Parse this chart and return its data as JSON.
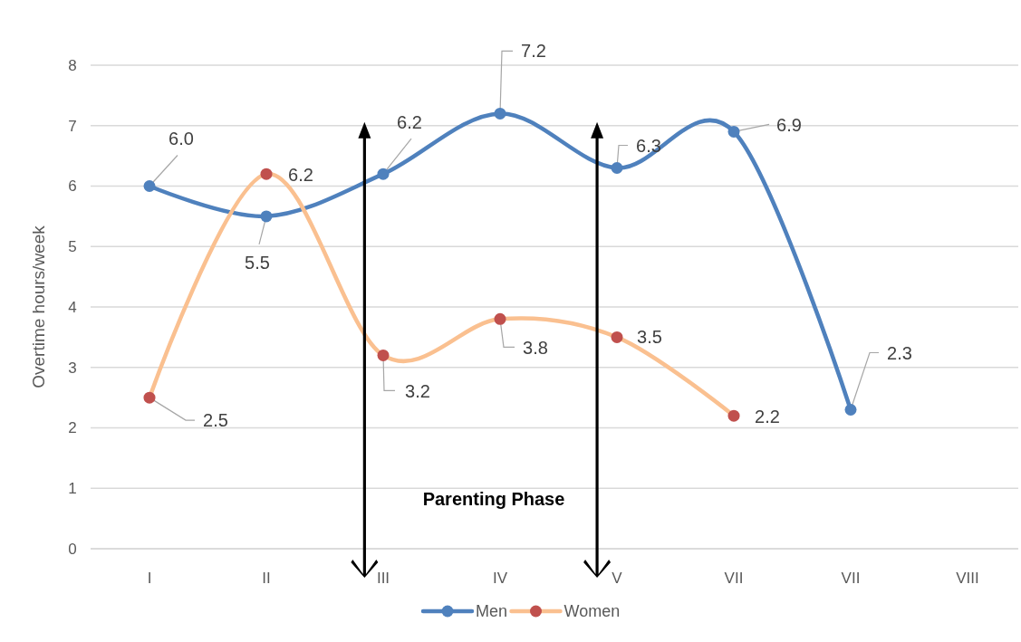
{
  "chart_data": {
    "type": "line",
    "ylabel": "Overtime hours/week",
    "categories": [
      "I",
      "II",
      "III",
      "IV",
      "V",
      "VII",
      "VII",
      "VIII"
    ],
    "series": [
      {
        "name": "Men",
        "color": "#4f81bd",
        "values": [
          6.0,
          5.5,
          6.2,
          7.2,
          6.3,
          6.9,
          2.3,
          null
        ],
        "value_labels": [
          "6.0",
          "5.5",
          "6.2",
          "7.2",
          "6.3",
          "6.9",
          "2.3",
          null
        ]
      },
      {
        "name": "Women",
        "color": "#fac090",
        "colors": [
          "#c0504d",
          "#c0504d",
          "#c0504d",
          "#c0504d",
          "#c0504d",
          "#c0504d",
          null,
          null
        ],
        "values": [
          2.5,
          6.2,
          3.2,
          3.8,
          3.5,
          2.2,
          null,
          null
        ],
        "value_labels": [
          "2.5",
          "6.2",
          "3.2",
          "3.8",
          "3.5",
          "2.2",
          null,
          null
        ]
      }
    ],
    "ylim": [
      0,
      8
    ],
    "yticks": [
      0,
      1,
      2,
      3,
      4,
      5,
      6,
      7,
      8
    ],
    "grid": "y",
    "legend": "bottom",
    "marker": "circle",
    "annotations": [
      "Parenting Phase"
    ]
  }
}
